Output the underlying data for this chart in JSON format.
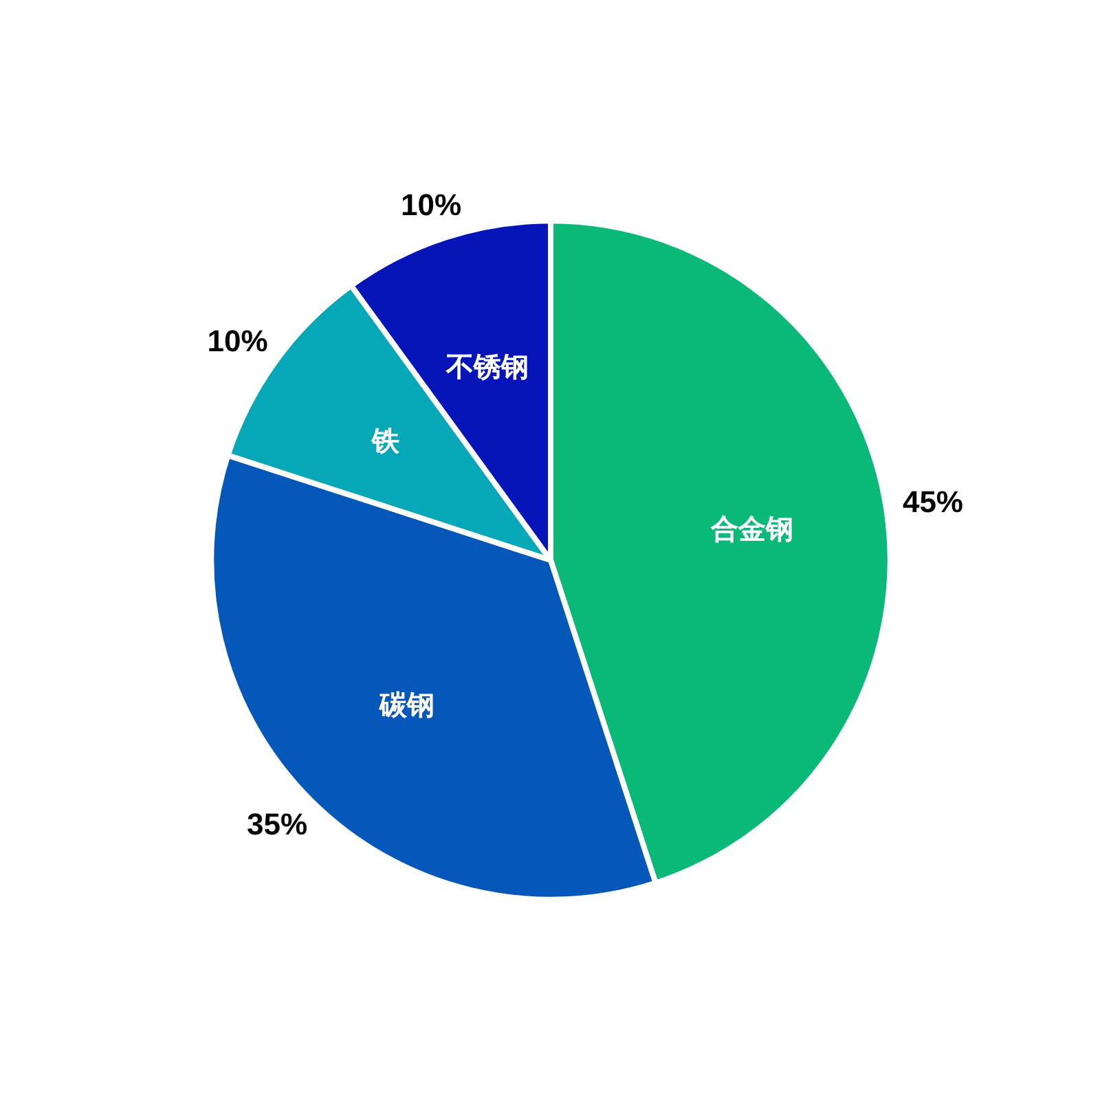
{
  "chart_data": {
    "type": "pie",
    "categories": [
      "合金钢",
      "碳钢",
      "铁",
      "不锈钢"
    ],
    "values": [
      45,
      35,
      10,
      10
    ],
    "value_labels": [
      "45%",
      "35%",
      "10%",
      "10%"
    ],
    "colors": [
      "#0ab877",
      "#0557b9",
      "#06a8b8",
      "#0515b8"
    ]
  }
}
